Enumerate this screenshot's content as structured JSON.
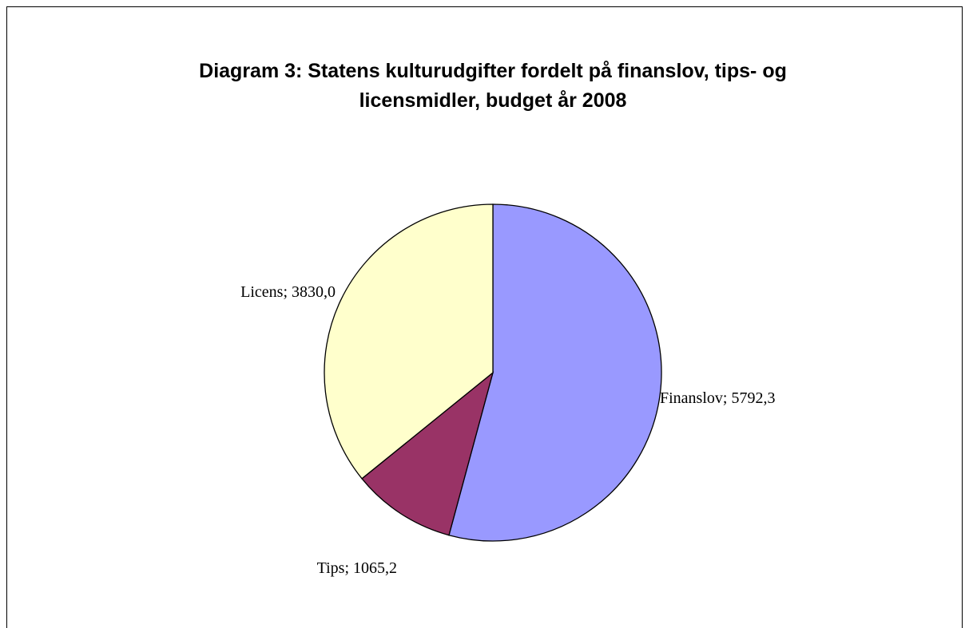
{
  "chart_data": {
    "type": "pie",
    "title": [
      "Diagram 3: Statens kulturudgifter fordelt på finanslov, tips- og",
      "licensmidler, budget år 2008"
    ],
    "categories": [
      "Finanslov",
      "Tips",
      "Licens"
    ],
    "values": [
      5792.3,
      1065.2,
      3830.0
    ],
    "value_labels": [
      "; 5792,3",
      "; 1065,2",
      "; 3830,0"
    ],
    "colors": [
      "#9999ff",
      "#993366",
      "#ffffcc"
    ]
  }
}
